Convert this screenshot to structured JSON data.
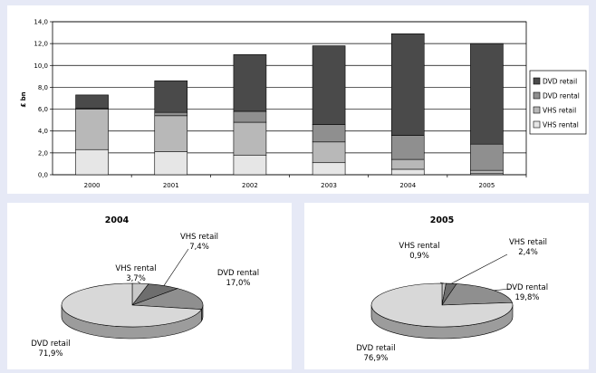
{
  "chart_data": [
    {
      "type": "bar",
      "stacked": true,
      "ylabel": "£ bn",
      "ylim": [
        0,
        14
      ],
      "ytick_labels": [
        "0,0",
        "2,0",
        "4,0",
        "6,0",
        "8,0",
        "10,0",
        "12,0",
        "14,0"
      ],
      "categories": [
        "2000",
        "2001",
        "2002",
        "2003",
        "2004",
        "2005"
      ],
      "series": [
        {
          "name": "VHS rental",
          "color": "#e6e6e6",
          "values": [
            2.3,
            2.1,
            1.8,
            1.1,
            0.5,
            0.1
          ]
        },
        {
          "name": "VHS retail",
          "color": "#b8b8b8",
          "values": [
            3.7,
            3.3,
            3.0,
            1.9,
            0.9,
            0.3
          ]
        },
        {
          "name": "DVD rental",
          "color": "#8f8f8f",
          "values": [
            0.1,
            0.3,
            1.0,
            1.6,
            2.2,
            2.4
          ]
        },
        {
          "name": "DVD retail",
          "color": "#4a4a4a",
          "values": [
            1.2,
            2.9,
            5.2,
            7.2,
            9.3,
            9.2
          ]
        }
      ],
      "legend_order": [
        "DVD retail",
        "DVD rental",
        "VHS retail",
        "VHS rental"
      ],
      "legend_position": "right",
      "grid": true
    },
    {
      "type": "pie",
      "title": "2004",
      "slices": [
        {
          "name": "VHS rental",
          "value": 3.7,
          "label": "VHS rental",
          "pct": "3,7%",
          "color": "#c8c8c8"
        },
        {
          "name": "VHS retail",
          "value": 7.4,
          "label": "VHS retail",
          "pct": "7,4%",
          "color": "#6e6e6e"
        },
        {
          "name": "DVD rental",
          "value": 17.0,
          "label": "DVD rental",
          "pct": "17,0%",
          "color": "#8f8f8f"
        },
        {
          "name": "DVD retail",
          "value": 71.9,
          "label": "DVD retail",
          "pct": "71,9%",
          "color": "#d8d8d8"
        }
      ]
    },
    {
      "type": "pie",
      "title": "2005",
      "slices": [
        {
          "name": "VHS rental",
          "value": 0.9,
          "label": "VHS rental",
          "pct": "0,9%",
          "color": "#c8c8c8"
        },
        {
          "name": "VHS retail",
          "value": 2.4,
          "label": "VHS retail",
          "pct": "2,4%",
          "color": "#6e6e6e"
        },
        {
          "name": "DVD rental",
          "value": 19.8,
          "label": "DVD rental",
          "pct": "19,8%",
          "color": "#8f8f8f"
        },
        {
          "name": "DVD retail",
          "value": 76.9,
          "label": "DVD retail",
          "pct": "76,9%",
          "color": "#d8d8d8"
        }
      ]
    }
  ]
}
